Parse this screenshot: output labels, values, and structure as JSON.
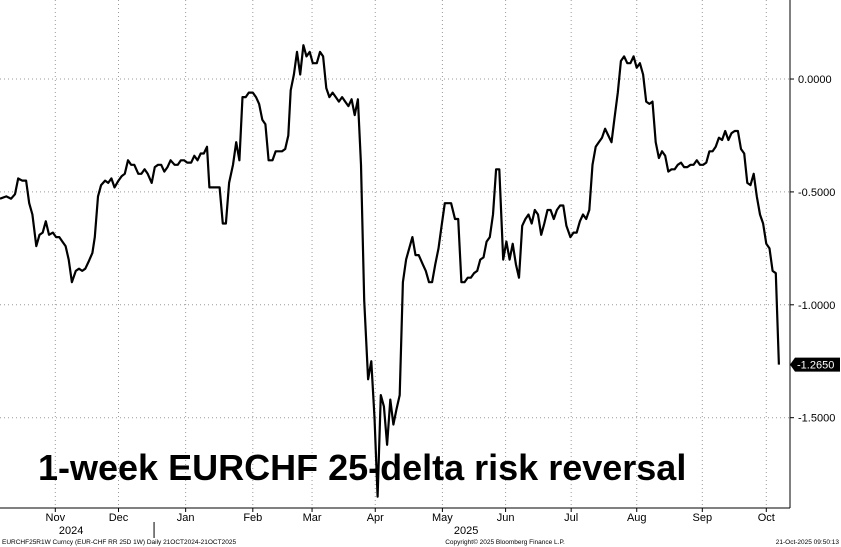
{
  "chart_data": {
    "type": "line",
    "title": "1-week EURCHF 25-delta risk reversal",
    "ylim": [
      -1.9,
      0.35
    ],
    "y_ticks": [
      0,
      -0.5,
      -1,
      -1.5
    ],
    "y_tick_labels": [
      "0.0000",
      "-0.5000",
      "-1.0000",
      "-1.5000"
    ],
    "last_value": -1.265,
    "last_value_label": "-1.2650",
    "grid": true,
    "x_months": [
      {
        "label": "Nov",
        "pos": 0.07
      },
      {
        "label": "Dec",
        "pos": 0.15
      },
      {
        "label": "Jan",
        "pos": 0.235
      },
      {
        "label": "Feb",
        "pos": 0.32
      },
      {
        "label": "Mar",
        "pos": 0.395
      },
      {
        "label": "Apr",
        "pos": 0.475
      },
      {
        "label": "May",
        "pos": 0.56
      },
      {
        "label": "Jun",
        "pos": 0.64
      },
      {
        "label": "Jul",
        "pos": 0.723
      },
      {
        "label": "Aug",
        "pos": 0.806
      },
      {
        "label": "Sep",
        "pos": 0.889
      },
      {
        "label": "Oct",
        "pos": 0.97
      }
    ],
    "x_years": [
      {
        "label": "2024",
        "pos": 0.09
      },
      {
        "label": "2025",
        "pos": 0.59
      }
    ],
    "series": [
      {
        "points": [
          [
            0.0,
            -0.53
          ],
          [
            0.008,
            -0.52
          ],
          [
            0.014,
            -0.53
          ],
          [
            0.019,
            -0.51
          ],
          [
            0.023,
            -0.44
          ],
          [
            0.028,
            -0.45
          ],
          [
            0.033,
            -0.45
          ],
          [
            0.037,
            -0.55
          ],
          [
            0.041,
            -0.6
          ],
          [
            0.046,
            -0.74
          ],
          [
            0.05,
            -0.69
          ],
          [
            0.054,
            -0.68
          ],
          [
            0.058,
            -0.63
          ],
          [
            0.062,
            -0.69
          ],
          [
            0.067,
            -0.68
          ],
          [
            0.071,
            -0.7
          ],
          [
            0.075,
            -0.7
          ],
          [
            0.079,
            -0.72
          ],
          [
            0.083,
            -0.74
          ],
          [
            0.087,
            -0.8
          ],
          [
            0.091,
            -0.9
          ],
          [
            0.096,
            -0.85
          ],
          [
            0.1,
            -0.84
          ],
          [
            0.104,
            -0.85
          ],
          [
            0.108,
            -0.84
          ],
          [
            0.112,
            -0.81
          ],
          [
            0.117,
            -0.77
          ],
          [
            0.12,
            -0.7
          ],
          [
            0.124,
            -0.52
          ],
          [
            0.128,
            -0.47
          ],
          [
            0.133,
            -0.45
          ],
          [
            0.137,
            -0.46
          ],
          [
            0.141,
            -0.44
          ],
          [
            0.145,
            -0.48
          ],
          [
            0.15,
            -0.45
          ],
          [
            0.154,
            -0.43
          ],
          [
            0.158,
            -0.42
          ],
          [
            0.162,
            -0.36
          ],
          [
            0.166,
            -0.38
          ],
          [
            0.17,
            -0.38
          ],
          [
            0.175,
            -0.42
          ],
          [
            0.179,
            -0.42
          ],
          [
            0.183,
            -0.4
          ],
          [
            0.187,
            -0.42
          ],
          [
            0.192,
            -0.46
          ],
          [
            0.196,
            -0.39
          ],
          [
            0.2,
            -0.38
          ],
          [
            0.204,
            -0.38
          ],
          [
            0.208,
            -0.41
          ],
          [
            0.212,
            -0.39
          ],
          [
            0.216,
            -0.36
          ],
          [
            0.221,
            -0.38
          ],
          [
            0.225,
            -0.38
          ],
          [
            0.229,
            -0.36
          ],
          [
            0.233,
            -0.36
          ],
          [
            0.237,
            -0.37
          ],
          [
            0.242,
            -0.37
          ],
          [
            0.246,
            -0.34
          ],
          [
            0.25,
            -0.36
          ],
          [
            0.254,
            -0.33
          ],
          [
            0.258,
            -0.33
          ],
          [
            0.262,
            -0.3
          ],
          [
            0.265,
            -0.48
          ],
          [
            0.27,
            -0.48
          ],
          [
            0.274,
            -0.48
          ],
          [
            0.278,
            -0.48
          ],
          [
            0.282,
            -0.64
          ],
          [
            0.286,
            -0.64
          ],
          [
            0.29,
            -0.46
          ],
          [
            0.295,
            -0.38
          ],
          [
            0.299,
            -0.28
          ],
          [
            0.303,
            -0.36
          ],
          [
            0.307,
            -0.08
          ],
          [
            0.311,
            -0.08
          ],
          [
            0.315,
            -0.06
          ],
          [
            0.32,
            -0.06
          ],
          [
            0.324,
            -0.08
          ],
          [
            0.328,
            -0.11
          ],
          [
            0.332,
            -0.18
          ],
          [
            0.336,
            -0.2
          ],
          [
            0.34,
            -0.36
          ],
          [
            0.345,
            -0.36
          ],
          [
            0.349,
            -0.32
          ],
          [
            0.353,
            -0.32
          ],
          [
            0.357,
            -0.32
          ],
          [
            0.361,
            -0.31
          ],
          [
            0.365,
            -0.25
          ],
          [
            0.368,
            -0.05
          ],
          [
            0.372,
            0.02
          ],
          [
            0.376,
            0.12
          ],
          [
            0.38,
            0.02
          ],
          [
            0.384,
            0.15
          ],
          [
            0.388,
            0.1
          ],
          [
            0.392,
            0.12
          ],
          [
            0.396,
            0.07
          ],
          [
            0.401,
            0.07
          ],
          [
            0.405,
            0.12
          ],
          [
            0.409,
            0.1
          ],
          [
            0.413,
            -0.04
          ],
          [
            0.417,
            -0.08
          ],
          [
            0.421,
            -0.06
          ],
          [
            0.425,
            -0.08
          ],
          [
            0.429,
            -0.1
          ],
          [
            0.433,
            -0.08
          ],
          [
            0.437,
            -0.1
          ],
          [
            0.441,
            -0.12
          ],
          [
            0.445,
            -0.09
          ],
          [
            0.449,
            -0.16
          ],
          [
            0.453,
            -0.09
          ],
          [
            0.457,
            -0.38
          ],
          [
            0.461,
            -0.98
          ],
          [
            0.466,
            -1.33
          ],
          [
            0.47,
            -1.25
          ],
          [
            0.474,
            -1.5
          ],
          [
            0.478,
            -1.85
          ],
          [
            0.482,
            -1.4
          ],
          [
            0.486,
            -1.45
          ],
          [
            0.49,
            -1.62
          ],
          [
            0.494,
            -1.42
          ],
          [
            0.498,
            -1.53
          ],
          [
            0.502,
            -1.46
          ],
          [
            0.506,
            -1.4
          ],
          [
            0.51,
            -0.9
          ],
          [
            0.514,
            -0.8
          ],
          [
            0.518,
            -0.75
          ],
          [
            0.522,
            -0.7
          ],
          [
            0.526,
            -0.78
          ],
          [
            0.53,
            -0.78
          ],
          [
            0.535,
            -0.82
          ],
          [
            0.539,
            -0.85
          ],
          [
            0.543,
            -0.9
          ],
          [
            0.547,
            -0.9
          ],
          [
            0.551,
            -0.82
          ],
          [
            0.555,
            -0.75
          ],
          [
            0.559,
            -0.65
          ],
          [
            0.563,
            -0.55
          ],
          [
            0.567,
            -0.55
          ],
          [
            0.571,
            -0.55
          ],
          [
            0.576,
            -0.62
          ],
          [
            0.58,
            -0.62
          ],
          [
            0.584,
            -0.9
          ],
          [
            0.588,
            -0.9
          ],
          [
            0.592,
            -0.88
          ],
          [
            0.596,
            -0.88
          ],
          [
            0.6,
            -0.86
          ],
          [
            0.604,
            -0.85
          ],
          [
            0.608,
            -0.8
          ],
          [
            0.612,
            -0.79
          ],
          [
            0.616,
            -0.72
          ],
          [
            0.62,
            -0.7
          ],
          [
            0.624,
            -0.6
          ],
          [
            0.628,
            -0.4
          ],
          [
            0.632,
            -0.4
          ],
          [
            0.637,
            -0.8
          ],
          [
            0.641,
            -0.72
          ],
          [
            0.645,
            -0.8
          ],
          [
            0.649,
            -0.73
          ],
          [
            0.653,
            -0.82
          ],
          [
            0.657,
            -0.88
          ],
          [
            0.661,
            -0.65
          ],
          [
            0.665,
            -0.62
          ],
          [
            0.669,
            -0.6
          ],
          [
            0.673,
            -0.64
          ],
          [
            0.677,
            -0.58
          ],
          [
            0.681,
            -0.6
          ],
          [
            0.685,
            -0.69
          ],
          [
            0.689,
            -0.64
          ],
          [
            0.693,
            -0.58
          ],
          [
            0.697,
            -0.58
          ],
          [
            0.701,
            -0.62
          ],
          [
            0.705,
            -0.58
          ],
          [
            0.709,
            -0.56
          ],
          [
            0.713,
            -0.56
          ],
          [
            0.717,
            -0.65
          ],
          [
            0.722,
            -0.7
          ],
          [
            0.726,
            -0.68
          ],
          [
            0.73,
            -0.68
          ],
          [
            0.734,
            -0.63
          ],
          [
            0.738,
            -0.6
          ],
          [
            0.742,
            -0.62
          ],
          [
            0.746,
            -0.58
          ],
          [
            0.75,
            -0.38
          ],
          [
            0.754,
            -0.3
          ],
          [
            0.758,
            -0.28
          ],
          [
            0.762,
            -0.26
          ],
          [
            0.766,
            -0.22
          ],
          [
            0.77,
            -0.25
          ],
          [
            0.774,
            -0.28
          ],
          [
            0.778,
            -0.17
          ],
          [
            0.782,
            -0.06
          ],
          [
            0.786,
            0.08
          ],
          [
            0.79,
            0.1
          ],
          [
            0.794,
            0.07
          ],
          [
            0.798,
            0.07
          ],
          [
            0.802,
            0.1
          ],
          [
            0.806,
            0.05
          ],
          [
            0.81,
            0.07
          ],
          [
            0.814,
            0.02
          ],
          [
            0.818,
            -0.1
          ],
          [
            0.822,
            -0.11
          ],
          [
            0.826,
            -0.1
          ],
          [
            0.83,
            -0.28
          ],
          [
            0.834,
            -0.35
          ],
          [
            0.838,
            -0.32
          ],
          [
            0.842,
            -0.34
          ],
          [
            0.846,
            -0.41
          ],
          [
            0.85,
            -0.4
          ],
          [
            0.854,
            -0.4
          ],
          [
            0.858,
            -0.38
          ],
          [
            0.862,
            -0.37
          ],
          [
            0.866,
            -0.39
          ],
          [
            0.87,
            -0.39
          ],
          [
            0.874,
            -0.38
          ],
          [
            0.878,
            -0.38
          ],
          [
            0.882,
            -0.36
          ],
          [
            0.886,
            -0.38
          ],
          [
            0.89,
            -0.38
          ],
          [
            0.894,
            -0.37
          ],
          [
            0.898,
            -0.32
          ],
          [
            0.902,
            -0.32
          ],
          [
            0.906,
            -0.3
          ],
          [
            0.91,
            -0.26
          ],
          [
            0.914,
            -0.27
          ],
          [
            0.918,
            -0.23
          ],
          [
            0.922,
            -0.27
          ],
          [
            0.926,
            -0.24
          ],
          [
            0.93,
            -0.23
          ],
          [
            0.934,
            -0.23
          ],
          [
            0.938,
            -0.31
          ],
          [
            0.942,
            -0.33
          ],
          [
            0.946,
            -0.46
          ],
          [
            0.95,
            -0.47
          ],
          [
            0.954,
            -0.42
          ],
          [
            0.958,
            -0.52
          ],
          [
            0.962,
            -0.6
          ],
          [
            0.966,
            -0.64
          ],
          [
            0.97,
            -0.73
          ],
          [
            0.974,
            -0.75
          ],
          [
            0.978,
            -0.85
          ],
          [
            0.982,
            -0.86
          ],
          [
            0.986,
            -1.265
          ]
        ]
      }
    ]
  },
  "footer": {
    "left": "EURCHF25R1W Curncy (EUR-CHF RR 25D 1W)  Daily 21OCT2024-21OCT2025",
    "center": "Copyright© 2025 Bloomberg Finance L.P.",
    "right": "21-Oct-2025 09:50:13"
  }
}
